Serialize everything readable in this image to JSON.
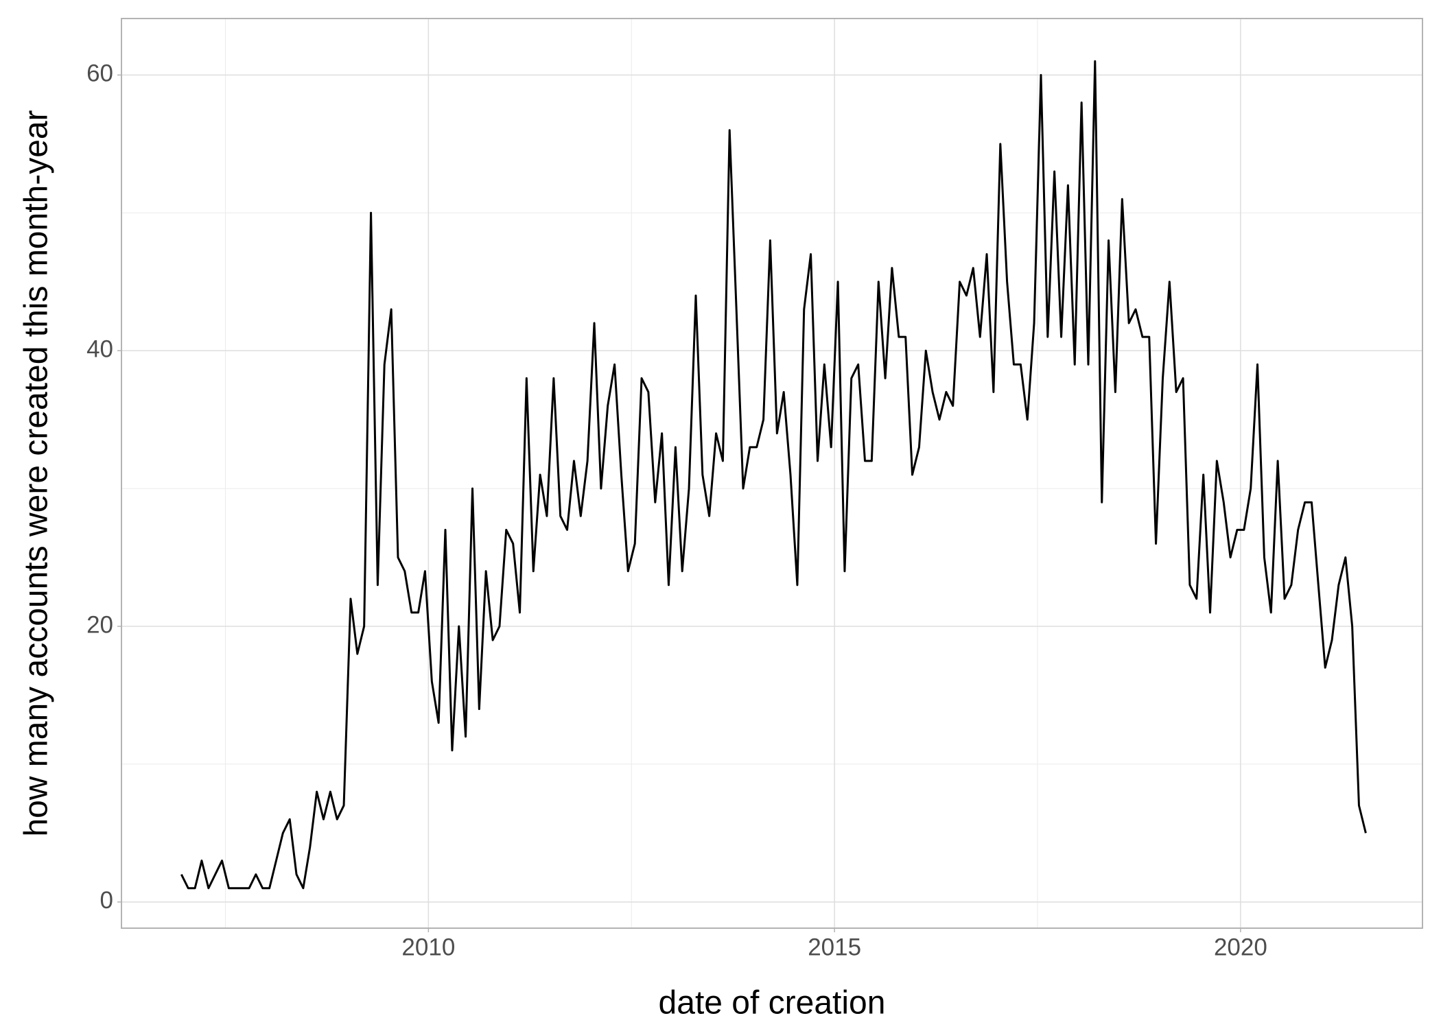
{
  "chart_data": {
    "type": "line",
    "x_label": "date of creation",
    "y_label": "how many accounts were created this month-year",
    "x": [
      2006.958,
      2007.042,
      2007.125,
      2007.208,
      2007.292,
      2007.375,
      2007.458,
      2007.542,
      2007.625,
      2007.708,
      2007.792,
      2007.875,
      2007.958,
      2008.042,
      2008.125,
      2008.208,
      2008.292,
      2008.375,
      2008.458,
      2008.542,
      2008.625,
      2008.708,
      2008.792,
      2008.875,
      2008.958,
      2009.042,
      2009.125,
      2009.208,
      2009.292,
      2009.375,
      2009.458,
      2009.542,
      2009.625,
      2009.708,
      2009.792,
      2009.875,
      2009.958,
      2010.042,
      2010.125,
      2010.208,
      2010.292,
      2010.375,
      2010.458,
      2010.542,
      2010.625,
      2010.708,
      2010.792,
      2010.875,
      2010.958,
      2011.042,
      2011.125,
      2011.208,
      2011.292,
      2011.375,
      2011.458,
      2011.542,
      2011.625,
      2011.708,
      2011.792,
      2011.875,
      2011.958,
      2012.042,
      2012.125,
      2012.208,
      2012.292,
      2012.375,
      2012.458,
      2012.542,
      2012.625,
      2012.708,
      2012.792,
      2012.875,
      2012.958,
      2013.042,
      2013.125,
      2013.208,
      2013.292,
      2013.375,
      2013.458,
      2013.542,
      2013.625,
      2013.708,
      2013.792,
      2013.875,
      2013.958,
      2014.042,
      2014.125,
      2014.208,
      2014.292,
      2014.375,
      2014.458,
      2014.542,
      2014.625,
      2014.708,
      2014.792,
      2014.875,
      2014.958,
      2015.042,
      2015.125,
      2015.208,
      2015.292,
      2015.375,
      2015.458,
      2015.542,
      2015.625,
      2015.708,
      2015.792,
      2015.875,
      2015.958,
      2016.042,
      2016.125,
      2016.208,
      2016.292,
      2016.375,
      2016.458,
      2016.542,
      2016.625,
      2016.708,
      2016.792,
      2016.875,
      2016.958,
      2017.042,
      2017.125,
      2017.208,
      2017.292,
      2017.375,
      2017.458,
      2017.542,
      2017.625,
      2017.708,
      2017.792,
      2017.875,
      2017.958,
      2018.042,
      2018.125,
      2018.208,
      2018.292,
      2018.375,
      2018.458,
      2018.542,
      2018.625,
      2018.708,
      2018.792,
      2018.875,
      2018.958,
      2019.042,
      2019.125,
      2019.208,
      2019.292,
      2019.375,
      2019.458,
      2019.542,
      2019.625,
      2019.708,
      2019.792,
      2019.875,
      2019.958,
      2020.042,
      2020.125,
      2020.208,
      2020.292,
      2020.375,
      2020.458,
      2020.542,
      2020.625,
      2020.708,
      2020.792,
      2020.875,
      2020.958,
      2021.042,
      2021.125,
      2021.208,
      2021.292,
      2021.375,
      2021.458,
      2021.542
    ],
    "values": [
      2,
      1,
      1,
      3,
      1,
      2,
      3,
      1,
      1,
      1,
      1,
      2,
      1,
      1,
      3,
      5,
      6,
      2,
      1,
      4,
      8,
      6,
      8,
      6,
      7,
      22,
      18,
      20,
      50,
      23,
      39,
      43,
      25,
      24,
      21,
      21,
      24,
      16,
      13,
      27,
      11,
      20,
      12,
      30,
      14,
      24,
      19,
      20,
      27,
      26,
      21,
      38,
      24,
      31,
      28,
      38,
      28,
      27,
      32,
      28,
      32,
      42,
      30,
      36,
      39,
      31,
      24,
      26,
      38,
      37,
      29,
      34,
      23,
      33,
      24,
      30,
      44,
      31,
      28,
      34,
      32,
      56,
      43,
      30,
      33,
      33,
      35,
      48,
      34,
      37,
      31,
      23,
      43,
      47,
      32,
      39,
      33,
      45,
      24,
      38,
      39,
      32,
      32,
      45,
      38,
      46,
      41,
      41,
      31,
      33,
      40,
      37,
      35,
      37,
      36,
      45,
      44,
      46,
      41,
      47,
      37,
      55,
      45,
      39,
      39,
      35,
      42,
      60,
      41,
      53,
      41,
      52,
      39,
      58,
      39,
      61,
      29,
      48,
      37,
      51,
      42,
      43,
      41,
      41,
      26,
      38,
      45,
      37,
      38,
      23,
      22,
      31,
      21,
      32,
      29,
      25,
      27,
      27,
      30,
      39,
      25,
      21,
      32,
      22,
      23,
      27,
      29,
      29,
      23,
      17,
      19,
      23,
      25,
      20,
      7,
      5
    ],
    "color": "#000000",
    "xlim": [
      2006.22,
      2022.24
    ],
    "xticks": [
      2010,
      2015,
      2020
    ],
    "xminorticks": [
      2007.5,
      2012.5,
      2017.5
    ],
    "ylim": [
      -1.9,
      64.1
    ],
    "yticks": [
      0,
      20,
      40,
      60
    ],
    "yminorticks": [
      10,
      30,
      50
    ],
    "grid": true
  }
}
